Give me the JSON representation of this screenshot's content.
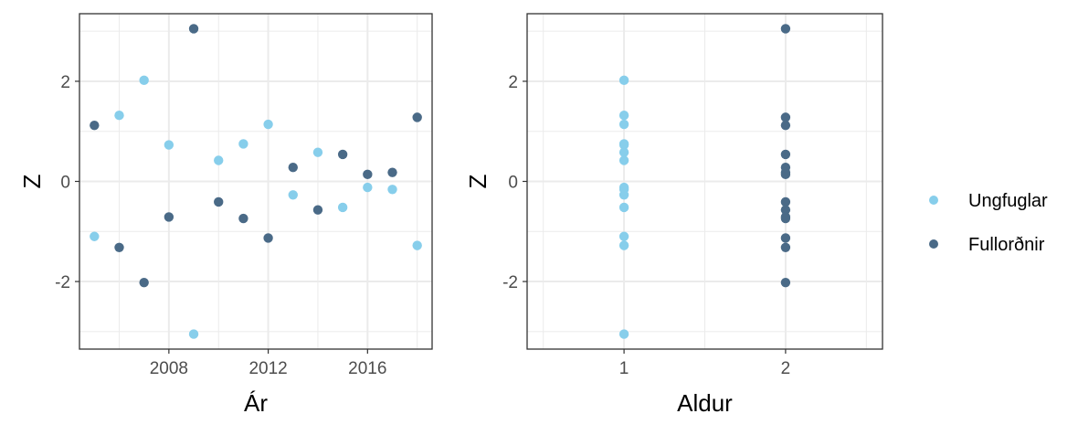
{
  "colors": {
    "Ungfuglar": "#87CEEB",
    "Fullorðnir": "#4A6A87",
    "grid": "#ebebeb",
    "frame": "#333333"
  },
  "legend": {
    "items": [
      {
        "label": "Ungfuglar",
        "color": "#87CEEB"
      },
      {
        "label": "Fullorðnir",
        "color": "#4A6A87"
      }
    ]
  },
  "chart_data": [
    {
      "type": "scatter",
      "xlabel": "Ár",
      "ylabel": "Z",
      "xlim": [
        2004.4,
        2018.6
      ],
      "ylim": [
        -3.35,
        3.35
      ],
      "xticks": [
        2008,
        2012,
        2016
      ],
      "yticks": [
        -2,
        0,
        2
      ],
      "grid": true,
      "series": [
        {
          "name": "Ungfuglar",
          "points": [
            [
              2005,
              -1.1
            ],
            [
              2006,
              1.32
            ],
            [
              2007,
              2.02
            ],
            [
              2008,
              0.73
            ],
            [
              2009,
              -3.05
            ],
            [
              2010,
              0.42
            ],
            [
              2011,
              0.75
            ],
            [
              2012,
              1.14
            ],
            [
              2013,
              -0.27
            ],
            [
              2014,
              0.58
            ],
            [
              2015,
              -0.52
            ],
            [
              2016,
              -0.12
            ],
            [
              2017,
              -0.16
            ],
            [
              2018,
              -1.28
            ]
          ]
        },
        {
          "name": "Fullorðnir",
          "points": [
            [
              2005,
              1.12
            ],
            [
              2006,
              -1.32
            ],
            [
              2007,
              -2.02
            ],
            [
              2008,
              -0.71
            ],
            [
              2009,
              3.05
            ],
            [
              2010,
              -0.41
            ],
            [
              2011,
              -0.74
            ],
            [
              2012,
              -1.13
            ],
            [
              2013,
              0.28
            ],
            [
              2014,
              -0.57
            ],
            [
              2015,
              0.54
            ],
            [
              2016,
              0.14
            ],
            [
              2017,
              0.18
            ],
            [
              2018,
              1.28
            ]
          ]
        }
      ]
    },
    {
      "type": "scatter",
      "xlabel": "Aldur",
      "ylabel": "Z",
      "xlim": [
        0.4,
        2.6
      ],
      "ylim": [
        -3.35,
        3.35
      ],
      "xticks": [
        1,
        2
      ],
      "yticks": [
        -2,
        0,
        2
      ],
      "grid": true,
      "series": [
        {
          "name": "Ungfuglar",
          "points": [
            [
              1,
              -1.1
            ],
            [
              1,
              1.32
            ],
            [
              1,
              2.02
            ],
            [
              1,
              0.73
            ],
            [
              1,
              -3.05
            ],
            [
              1,
              0.42
            ],
            [
              1,
              0.75
            ],
            [
              1,
              1.14
            ],
            [
              1,
              -0.27
            ],
            [
              1,
              0.58
            ],
            [
              1,
              -0.52
            ],
            [
              1,
              -0.12
            ],
            [
              1,
              -0.16
            ],
            [
              1,
              -1.28
            ]
          ]
        },
        {
          "name": "Fullorðnir",
          "points": [
            [
              2,
              1.12
            ],
            [
              2,
              -1.32
            ],
            [
              2,
              -2.02
            ],
            [
              2,
              -0.71
            ],
            [
              2,
              3.05
            ],
            [
              2,
              -0.41
            ],
            [
              2,
              -0.74
            ],
            [
              2,
              -1.13
            ],
            [
              2,
              0.28
            ],
            [
              2,
              -0.57
            ],
            [
              2,
              0.54
            ],
            [
              2,
              0.14
            ],
            [
              2,
              0.18
            ],
            [
              2,
              1.28
            ]
          ]
        }
      ]
    }
  ]
}
